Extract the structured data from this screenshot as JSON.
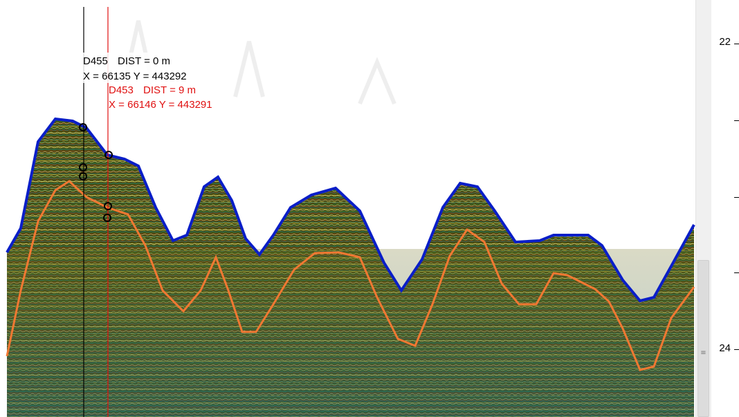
{
  "colors": {
    "ground": "#5a5a12",
    "horizon_top": "#0a1ec8",
    "horizon_bottom": "#f07832",
    "cursor_black": "#000000",
    "cursor_red": "#e01010",
    "ruler_text": "#000000"
  },
  "cursors": [
    {
      "name": "D455",
      "dist_label": "DIST = 0 m",
      "xy_label": "X = 66135 Y = 443292",
      "color": "#000000"
    },
    {
      "name": "D453",
      "dist_label": "DIST = 9 m",
      "xy_label": "X = 66146 Y = 443291",
      "color": "#e01010"
    }
  ],
  "ruler": {
    "labels": [
      "22",
      "24"
    ]
  },
  "scrollbar": {
    "grip": "≡"
  },
  "icons": {
    "marker": "circle-marker-icon"
  }
}
